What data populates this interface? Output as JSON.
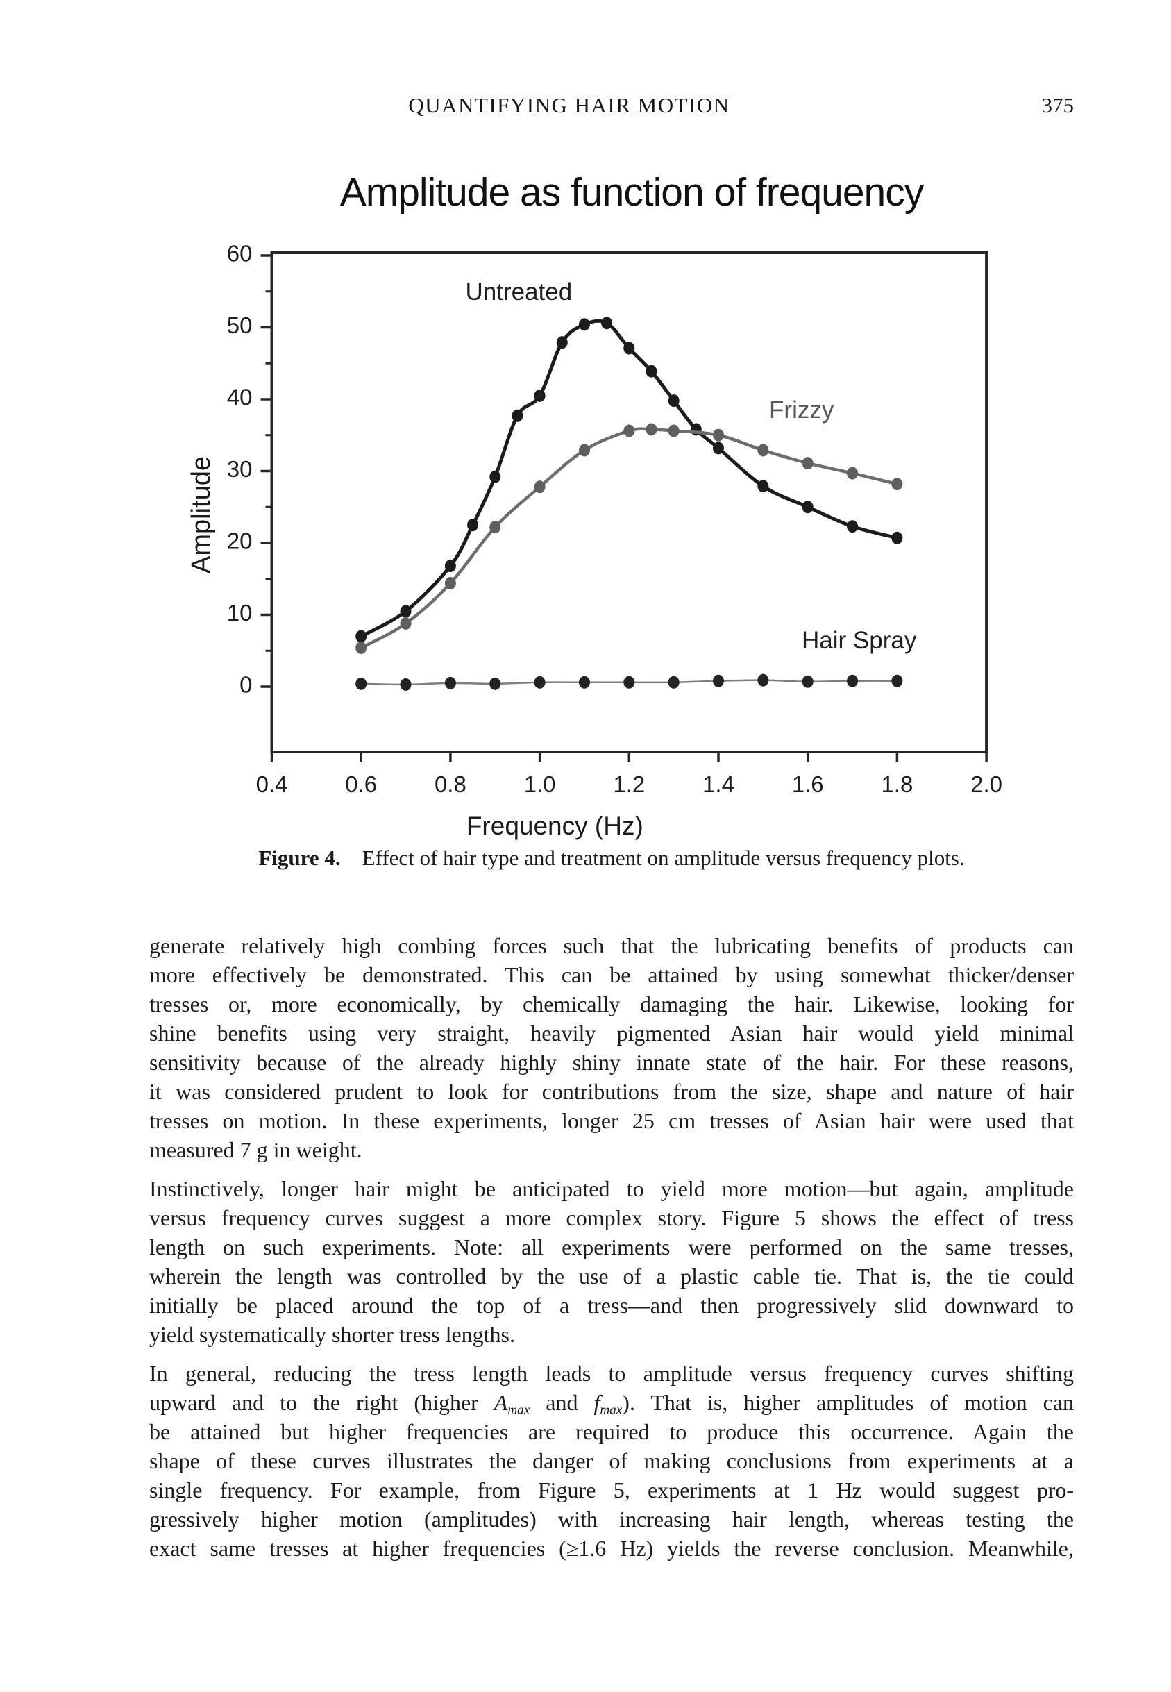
{
  "header": {
    "running_title": "QUANTIFYING HAIR MOTION",
    "page_number": "375"
  },
  "figure": {
    "caption_label": "Figure 4.",
    "caption_text": "Effect of hair type and treatment on amplitude versus frequency plots."
  },
  "chart_data": {
    "type": "line",
    "title": "Amplitude as function of frequency",
    "xlabel": "Frequency (Hz)",
    "ylabel": "Amplitude",
    "xlim": [
      0.4,
      2.0
    ],
    "ylim": [
      -9,
      60.4
    ],
    "x_ticks": [
      0.4,
      0.6,
      0.8,
      1.0,
      1.2,
      1.4,
      1.6,
      1.8,
      2.0
    ],
    "y_ticks_major": [
      0,
      10,
      20,
      30,
      40,
      50,
      60
    ],
    "y_ticks_minor": [
      5,
      15,
      25,
      35,
      45,
      55
    ],
    "grid": false,
    "legend_position": "inline-labels",
    "frame": "full-box",
    "series": [
      {
        "name": "Untreated",
        "line_color": "#1c1c1c",
        "marker_color": "#1c1c1c",
        "label_color": "#1f1f1f",
        "line_width": 5,
        "label_pos": [
          0.953,
          53.8
        ],
        "points": [
          [
            0.6,
            7.0
          ],
          [
            0.7,
            10.5
          ],
          [
            0.8,
            16.8
          ],
          [
            0.85,
            22.5
          ],
          [
            0.9,
            29.2
          ],
          [
            0.95,
            37.7
          ],
          [
            1.0,
            40.5
          ],
          [
            1.05,
            47.9
          ],
          [
            1.1,
            50.4
          ],
          [
            1.15,
            50.6
          ],
          [
            1.2,
            47.1
          ],
          [
            1.25,
            43.9
          ],
          [
            1.3,
            39.8
          ],
          [
            1.35,
            35.8
          ],
          [
            1.4,
            33.2
          ],
          [
            1.5,
            27.9
          ],
          [
            1.6,
            25.0
          ],
          [
            1.7,
            22.3
          ],
          [
            1.8,
            20.7
          ]
        ]
      },
      {
        "name": "Frizzy",
        "line_color": "#6d6d6d",
        "marker_color": "#5f5f5f",
        "label_color": "#565656",
        "line_width": 4.5,
        "label_pos": [
          1.586,
          37.4
        ],
        "points": [
          [
            0.6,
            5.4
          ],
          [
            0.7,
            8.8
          ],
          [
            0.8,
            14.4
          ],
          [
            0.9,
            22.2
          ],
          [
            1.0,
            27.8
          ],
          [
            1.1,
            32.9
          ],
          [
            1.2,
            35.6
          ],
          [
            1.25,
            35.8
          ],
          [
            1.3,
            35.6
          ],
          [
            1.4,
            35.0
          ],
          [
            1.5,
            32.9
          ],
          [
            1.6,
            31.1
          ],
          [
            1.7,
            29.7
          ],
          [
            1.8,
            28.2
          ]
        ]
      },
      {
        "name": "Hair Spray",
        "line_color": "#7d7d7d",
        "marker_color": "#232323",
        "label_color": "#1f1f1f",
        "line_width": 2.5,
        "label_pos": [
          1.715,
          5.3
        ],
        "points": [
          [
            0.6,
            0.4
          ],
          [
            0.7,
            0.3
          ],
          [
            0.8,
            0.5
          ],
          [
            0.9,
            0.4
          ],
          [
            1.0,
            0.6
          ],
          [
            1.1,
            0.6
          ],
          [
            1.2,
            0.6
          ],
          [
            1.3,
            0.6
          ],
          [
            1.4,
            0.8
          ],
          [
            1.5,
            0.9
          ],
          [
            1.6,
            0.7
          ],
          [
            1.7,
            0.8
          ],
          [
            1.8,
            0.8
          ]
        ]
      }
    ]
  },
  "body": {
    "paragraphs": [
      {
        "justify_last": false,
        "lines": [
          "generate relatively high combing forces such that the lubricating benefits of products can",
          "more effectively be demonstrated. This can be attained by using somewhat thicker/denser",
          "tresses or, more economically, by chemically damaging the hair. Likewise, looking for",
          "shine benefits using very straight, heavily pigmented Asian hair would yield minimal",
          "sensitivity because of the already highly shiny innate state of the hair. For these reasons,",
          "it was considered prudent to look for contributions from the size, shape and nature of hair",
          "tresses on motion. In these experiments, longer 25 cm tresses of Asian hair were used that",
          "measured 7 g in weight."
        ]
      },
      {
        "justify_last": false,
        "lines": [
          "Instinctively, longer hair might be anticipated to yield more motion—but again, amplitude",
          "versus frequency curves suggest a more complex story. Figure 5 shows the effect of tress",
          "length on such experiments. Note: all experiments were performed on the same tresses,",
          "wherein the length was controlled by the use of a plastic cable tie. That is, the tie could",
          "initially be placed around the top of a tress—and then progressively slid downward to",
          "yield systematically shorter tress lengths."
        ]
      },
      {
        "justify_last": true,
        "lines": [
          "In general, reducing the tress length leads to amplitude versus frequency curves shifting",
          "upward and to the right (higher {Amax} and {fmax}). That is, higher amplitudes of motion can",
          "be attained but higher frequencies are required to produce this occurrence. Again the",
          "shape of these curves illustrates the danger of making conclusions from experiments at a",
          "single frequency. For example, from Figure 5, experiments at 1 Hz would suggest pro-",
          "gressively higher motion (amplitudes) with increasing hair length, whereas testing the",
          "exact same tresses at higher frequencies (≥1.6 Hz) yields the reverse conclusion. Meanwhile,"
        ]
      }
    ]
  }
}
